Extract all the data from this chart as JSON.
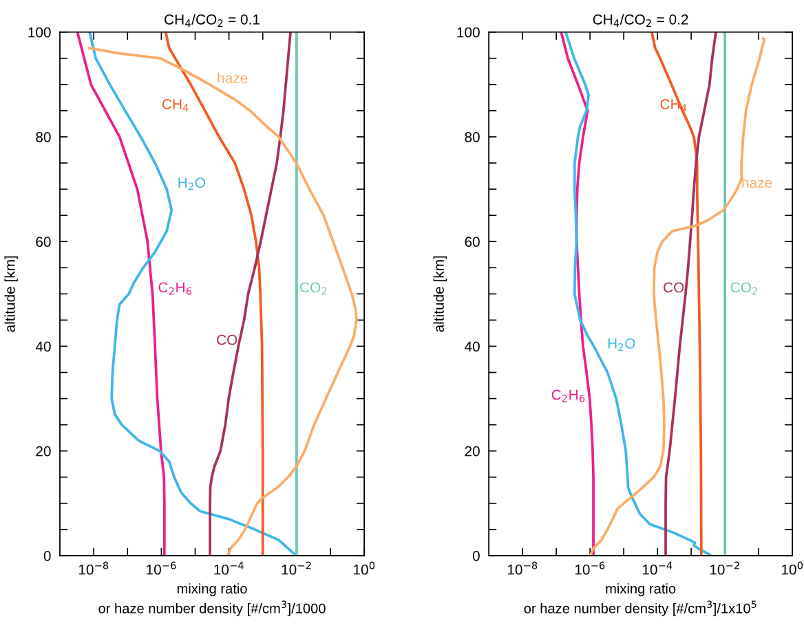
{
  "chart_data": [
    {
      "type": "line",
      "title": "CH$_{4}$/CO$_{2}$ = 0.1",
      "xlabel": "mixing ratio\nor haze number density [#/cm$^{3}$]/1000",
      "ylabel": "altitude [km]",
      "log": "x",
      "grid": false,
      "line_style": "solid",
      "xlim": [
        1e-09,
        1
      ],
      "ylim": [
        0,
        100
      ],
      "xticks": [
        {
          "value": 1e-08,
          "label": "10$^{−8}$"
        },
        {
          "value": 1e-07,
          "label": null
        },
        {
          "value": 1e-06,
          "label": "10$^{−6}$"
        },
        {
          "value": 1e-05,
          "label": null
        },
        {
          "value": 0.0001,
          "label": "10$^{−4}$"
        },
        {
          "value": 0.001,
          "label": null
        },
        {
          "value": 0.01,
          "label": "10$^{−2}$"
        },
        {
          "value": 0.1,
          "label": null
        },
        {
          "value": 1,
          "label": "10$^{0}$"
        }
      ],
      "yticks": [
        0,
        {
          "value": 5,
          "label": null
        },
        {
          "value": 10,
          "label": null
        },
        {
          "value": 15,
          "label": null
        },
        20,
        {
          "value": 25,
          "label": null
        },
        {
          "value": 30,
          "label": null
        },
        {
          "value": 35,
          "label": null
        },
        40,
        {
          "value": 45,
          "label": null
        },
        {
          "value": 50,
          "label": null
        },
        {
          "value": 55,
          "label": null
        },
        60,
        {
          "value": 65,
          "label": null
        },
        {
          "value": 70,
          "label": null
        },
        {
          "value": 75,
          "label": null
        },
        80,
        {
          "value": 85,
          "label": null
        },
        {
          "value": 90,
          "label": null
        },
        {
          "value": 95,
          "label": null
        },
        100
      ],
      "series": [
        {
          "name": "C$_{2}$H$_{6}$",
          "color": "#ed1e8c",
          "x": [
            3.3e-09,
            8.3e-09,
            5.8e-08,
            1.95e-07,
            3.9e-07,
            5.5e-07,
            6.5e-07,
            7.6e-07,
            9.8e-07,
            1.2e-06,
            1.23e-06,
            1.23e-06
          ],
          "values": [
            100,
            90,
            80,
            70,
            60,
            50,
            40,
            30,
            20,
            15,
            10,
            0
          ]
        },
        {
          "name": "H$_{2}$O",
          "color": "#3fb6e8",
          "x": [
            7.6e-09,
            1.15e-08,
            3e-08,
            8.5e-08,
            2.45e-07,
            6.5e-07,
            1.45e-06,
            2e-06,
            1.45e-06,
            6.5e-07,
            2.9e-07,
            1.5e-07,
            1.1e-07,
            5.8e-08,
            4.9e-08,
            4.2e-08,
            3.6e-08,
            3.4e-08,
            4.2e-08,
            6.8e-08,
            2.1e-07,
            8.9e-07,
            1.7e-06,
            2.4e-06,
            3.9e-06,
            7.4e-06,
            1.4e-05,
            9.8e-05,
            0.00058,
            0.00295,
            0.0098
          ],
          "values": [
            100,
            95,
            90,
            85,
            80,
            75,
            70,
            66,
            62,
            58,
            55,
            52,
            50,
            48,
            45,
            40,
            35,
            30,
            27,
            25,
            22,
            20,
            18,
            15,
            12,
            10,
            8.5,
            7,
            5,
            3,
            0
          ]
        },
        {
          "name": "CH$_{4}$",
          "color": "#f15a24",
          "x": [
            1.35e-06,
            1.7e-06,
            3.9e-06,
            7.4e-06,
            1.95e-05,
            5.1e-05,
            0.00015,
            0.00028,
            0.00046,
            0.00063,
            0.00078,
            0.00085,
            0.00095,
            0.001,
            0.001
          ],
          "values": [
            100,
            97,
            93,
            90,
            85,
            80,
            75,
            70,
            65,
            60,
            55,
            50,
            40,
            20,
            0
          ]
        },
        {
          "name": "CO",
          "color": "#a8315f",
          "x": [
            0.0066,
            0.0048,
            0.0041,
            0.0033,
            0.0026,
            0.0018,
            0.00087,
            0.00058,
            0.00037,
            0.00028,
            0.00019,
            0.000135,
            9.8e-05,
            7.8e-05,
            5.6e-05,
            3.7e-05,
            3.1e-05,
            2.8e-05,
            2.75e-05,
            2.75e-05
          ],
          "values": [
            100,
            90,
            85,
            80,
            75,
            70,
            60,
            55,
            50,
            45,
            40,
            35,
            30,
            25,
            20,
            17,
            15,
            13,
            10,
            0
          ]
        },
        {
          "name": "CO$_{2}$",
          "color": "#6cc9b0",
          "x": [
            0.01,
            0.01
          ],
          "values": [
            0,
            100
          ]
        },
        {
          "name": "haze",
          "color": "#fbac66",
          "x": [
            6.8e-09,
            4.9e-08,
            9.3e-07,
            3.9e-06,
            2.7e-05,
            0.00016,
            0.00042,
            0.0013,
            0.00295,
            0.0098,
            0.024,
            0.063,
            0.12,
            0.23,
            0.43,
            0.56,
            0.59,
            0.5,
            0.38,
            0.166,
            0.074,
            0.033,
            0.0174,
            0.0098,
            0.0056,
            0.0027,
            0.00095,
            0.00068,
            0.00049,
            0.0003,
            0.00019,
            0.000115,
            9.1e-05
          ],
          "values": [
            97,
            96,
            95,
            93,
            90,
            87,
            85,
            82,
            80,
            75,
            70,
            65,
            60,
            55,
            50,
            47,
            45,
            42,
            40,
            35,
            30,
            25,
            20,
            17,
            15,
            13,
            11,
            10,
            8,
            5,
            3,
            1.5,
            0
          ]
        }
      ]
    },
    {
      "type": "line",
      "title": "CH$_{4}$/CO$_{2}$ = 0.2",
      "xlabel": "mixing ratio\nor haze number density [#/cm$^{3}$]/1x10$^{5}$",
      "ylabel": "altitude [km]",
      "log": "x",
      "grid": false,
      "line_style": "solid",
      "xlim": [
        1e-09,
        1
      ],
      "ylim": [
        0,
        100
      ],
      "xticks": [
        {
          "value": 1e-08,
          "label": "10$^{−8}$"
        },
        {
          "value": 1e-07,
          "label": null
        },
        {
          "value": 1e-06,
          "label": "10$^{−6}$"
        },
        {
          "value": 1e-05,
          "label": null
        },
        {
          "value": 0.0001,
          "label": "10$^{−4}$"
        },
        {
          "value": 0.001,
          "label": null
        },
        {
          "value": 0.01,
          "label": "10$^{−2}$"
        },
        {
          "value": 0.1,
          "label": null
        },
        {
          "value": 1,
          "label": "10$^{0}$"
        }
      ],
      "yticks": [
        0,
        {
          "value": 5,
          "label": null
        },
        {
          "value": 10,
          "label": null
        },
        {
          "value": 15,
          "label": null
        },
        20,
        {
          "value": 25,
          "label": null
        },
        {
          "value": 30,
          "label": null
        },
        {
          "value": 35,
          "label": null
        },
        40,
        {
          "value": 45,
          "label": null
        },
        {
          "value": 50,
          "label": null
        },
        {
          "value": 55,
          "label": null
        },
        60,
        {
          "value": 65,
          "label": null
        },
        {
          "value": 70,
          "label": null
        },
        {
          "value": 75,
          "label": null
        },
        80,
        {
          "value": 85,
          "label": null
        },
        {
          "value": 90,
          "label": null
        },
        {
          "value": 95,
          "label": null
        },
        100
      ],
      "series": [
        {
          "name": "C$_{2}$H$_{6}$",
          "color": "#ed1e8c",
          "x": [
            1.4e-07,
            2.2e-07,
            4.4e-07,
            8.5e-07,
            6.2e-07,
            4.8e-07,
            4.2e-07,
            4e-07,
            4e-07,
            4.4e-07,
            4.8e-07,
            5.4e-07,
            6.2e-07,
            7.9e-07,
            9.8e-07,
            1.1e-06,
            1.2e-06,
            1.26e-06,
            1.26e-06
          ],
          "values": [
            100,
            95,
            90,
            85,
            80,
            75,
            70,
            65,
            60,
            55,
            50,
            45,
            40,
            35,
            30,
            25,
            20,
            15,
            0
          ]
        },
        {
          "name": "H$_{2}$O",
          "color": "#3fb6e8",
          "x": [
            1.9e-07,
            2.4e-07,
            3.4e-07,
            7.2e-07,
            9.1e-07,
            7.9e-07,
            5.1e-07,
            4.4e-07,
            3.5e-07,
            3.5e-07,
            3.8e-07,
            4e-07,
            3.6e-07,
            3.5e-07,
            5.1e-07,
            8.5e-07,
            1.3e-06,
            3.3e-06,
            6e-06,
            8.5e-06,
            1.15e-05,
            1.3e-05,
            1.35e-05,
            1.8e-05,
            3e-05,
            6e-05,
            0.000275,
            0.0013,
            0.0012,
            0.0015,
            0.004
          ],
          "values": [
            100,
            98,
            95,
            90,
            88,
            85,
            82,
            80,
            75,
            70,
            65,
            60,
            55,
            50,
            45,
            42,
            40,
            35,
            30,
            25,
            20,
            15,
            13,
            11,
            8,
            6,
            4.5,
            2.5,
            2,
            1.5,
            0
          ]
        },
        {
          "name": "CH$_{4}$",
          "color": "#f15a24",
          "x": [
            6.8e-05,
            8.5e-05,
            0.00012,
            0.00026,
            0.00055,
            0.00091,
            0.0012,
            0.0014,
            0.0015,
            0.0015,
            0.0016,
            0.0017,
            0.0018,
            0.00195,
            0.002
          ],
          "values": [
            100,
            97,
            95,
            90,
            85,
            82,
            80,
            77,
            75,
            70,
            60,
            50,
            40,
            20,
            0
          ]
        },
        {
          "name": "CO",
          "color": "#a8315f",
          "x": [
            0.0054,
            0.0042,
            0.0035,
            0.00245,
            0.0017,
            0.0014,
            0.0012,
            0.00107,
            0.00093,
            0.00081,
            0.00068,
            0.00046,
            0.00033,
            0.00023,
            0.00018,
            0.000175,
            0.000175
          ],
          "values": [
            100,
            95,
            90,
            85,
            80,
            75,
            70,
            65,
            60,
            55,
            50,
            40,
            30,
            20,
            15,
            10,
            0
          ]
        },
        {
          "name": "CO$_{2}$",
          "color": "#6cc9b0",
          "x": [
            0.01,
            0.01
          ],
          "values": [
            0,
            100
          ]
        },
        {
          "name": "haze",
          "color": "#fbac66",
          "x": [
            0.129,
            0.148,
            0.126,
            0.107,
            0.063,
            0.042,
            0.035,
            0.031,
            0.031,
            0.023,
            0.015,
            0.0091,
            0.003,
            0.0013,
            0.000275,
            0.00014,
            0.0001,
            8.1e-05,
            7.8e-05,
            9.1e-05,
            0.00011,
            0.00013,
            0.00015,
            0.00016,
            0.00015,
            0.00012,
            7.8e-05,
            3.6e-05,
            1.55e-05,
            6.6e-06,
            4.7e-06,
            3.3e-06,
            2.2e-06,
            1.3e-06,
            1e-06
          ],
          "values": [
            99,
            98.5,
            97,
            95,
            90,
            85,
            80,
            75,
            72,
            70,
            68,
            66,
            64,
            63,
            62,
            60,
            58,
            55,
            50,
            45,
            40,
            35,
            30,
            25,
            20,
            17,
            15,
            13,
            11,
            9,
            7,
            5,
            3,
            1.5,
            0
          ]
        }
      ]
    }
  ]
}
